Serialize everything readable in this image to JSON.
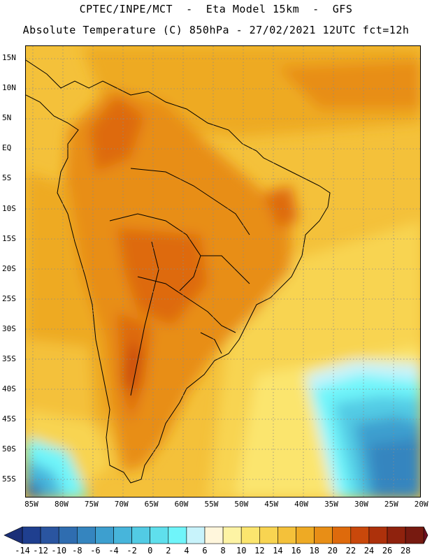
{
  "header": {
    "title_line1": "CPTEC/INPE/MCT  -  Eta Model 15km  -  GFS",
    "title_line2": "Absolute Temperature (C) 850hPa - 27/02/2021 12UTC fct=12h"
  },
  "map": {
    "lat_labels": [
      "15N",
      "10N",
      "5N",
      "EQ",
      "5S",
      "10S",
      "15S",
      "20S",
      "25S",
      "30S",
      "35S",
      "40S",
      "45S",
      "50S",
      "55S"
    ],
    "lon_labels": [
      "85W",
      "80W",
      "75W",
      "70W",
      "65W",
      "60W",
      "55W",
      "50W",
      "45W",
      "40W",
      "35W",
      "30W",
      "25W",
      "20W"
    ]
  },
  "colorbar": {
    "labels": [
      "-14",
      "-12",
      "-10",
      "-8",
      "-6",
      "-4",
      "-2",
      "0",
      "2",
      "4",
      "6",
      "8",
      "10",
      "12",
      "14",
      "16",
      "18",
      "20",
      "22",
      "24",
      "26",
      "28"
    ],
    "colors": [
      "#1f3f8f",
      "#2a55a0",
      "#2f6db0",
      "#3585bf",
      "#3d9fcf",
      "#47b5db",
      "#52cbe4",
      "#5fdfec",
      "#6ff5fa",
      "#c8f3fb",
      "#fff6dc",
      "#fdf3a4",
      "#fbe56e",
      "#f8d451",
      "#f4c13a",
      "#eeaa24",
      "#e88e16",
      "#de6a0c",
      "#c9480b",
      "#ad310b",
      "#8f220d",
      "#771a10"
    ],
    "end_low": "#1b2f78",
    "end_high": "#6e0f20"
  }
}
